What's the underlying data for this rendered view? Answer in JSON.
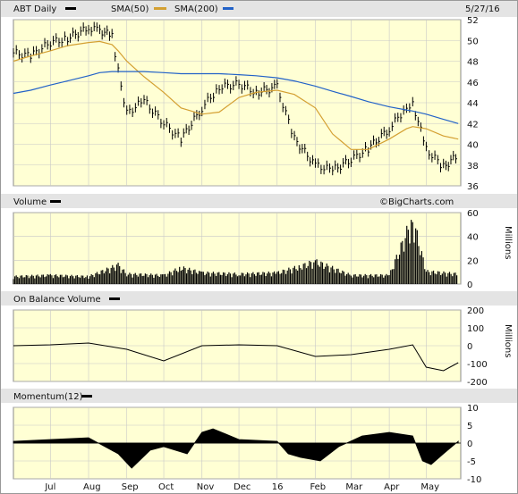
{
  "header": {
    "symbol_label": "ABT Daily",
    "sma50_label": "SMA(50)",
    "sma200_label": "SMA(200)",
    "date": "5/27/16"
  },
  "colors": {
    "price": "#000000",
    "sma50": "#d4a032",
    "sma200": "#2262c8",
    "panel_bg": "#ffffd4",
    "grid": "#c8c8c8",
    "header_bg": "#e4e4e4"
  },
  "x_axis": {
    "months": [
      "Jul",
      "Aug",
      "Sep",
      "Oct",
      "Nov",
      "Dec",
      "16",
      "Feb",
      "Mar",
      "Apr",
      "May"
    ]
  },
  "panels": {
    "volume": {
      "title": "Volume",
      "watermark": "©BigCharts.com",
      "unit_label": "Millions"
    },
    "obv": {
      "title": "On Balance Volume",
      "unit_label": "Millions"
    },
    "momentum": {
      "title": "Momentum(12)"
    }
  },
  "chart_data": [
    {
      "type": "line",
      "panel": "price",
      "title": "ABT Daily",
      "ylim": [
        36,
        52
      ],
      "yticks": [
        36,
        38,
        40,
        42,
        44,
        46,
        48,
        50,
        52
      ],
      "x": [
        "2015-06-01",
        "2015-06-15",
        "2015-07-01",
        "2015-07-15",
        "2015-08-01",
        "2015-08-10",
        "2015-08-20",
        "2015-08-25",
        "2015-09-01",
        "2015-09-15",
        "2015-10-01",
        "2015-10-15",
        "2015-11-01",
        "2015-11-15",
        "2015-12-01",
        "2015-12-15",
        "2016-01-01",
        "2016-01-15",
        "2016-02-01",
        "2016-02-15",
        "2016-03-01",
        "2016-03-15",
        "2016-04-01",
        "2016-04-15",
        "2016-04-20",
        "2016-05-01",
        "2016-05-15",
        "2016-05-27"
      ],
      "series": [
        {
          "name": "ABT Daily",
          "values": [
            48.8,
            48.5,
            49.8,
            50.2,
            51.2,
            51.0,
            50.4,
            47.0,
            43.0,
            44.2,
            42.0,
            40.5,
            43.5,
            45.5,
            45.8,
            45.0,
            45.5,
            40.5,
            38.0,
            37.5,
            38.5,
            39.6,
            41.5,
            43.6,
            44.0,
            39.5,
            37.8,
            39.0
          ]
        },
        {
          "name": "SMA(50)",
          "values": [
            48.0,
            48.5,
            49.0,
            49.5,
            49.8,
            49.9,
            49.6,
            49.0,
            48.0,
            46.5,
            45.0,
            43.5,
            42.9,
            43.1,
            44.5,
            45.0,
            45.2,
            44.8,
            43.5,
            41.0,
            39.5,
            39.5,
            40.5,
            41.5,
            41.7,
            41.5,
            40.8,
            40.5
          ]
        },
        {
          "name": "SMA(200)",
          "values": [
            44.9,
            45.2,
            45.7,
            46.1,
            46.6,
            46.9,
            47.0,
            47.0,
            47.0,
            47.0,
            46.9,
            46.8,
            46.8,
            46.8,
            46.7,
            46.6,
            46.4,
            46.1,
            45.6,
            45.1,
            44.6,
            44.1,
            43.6,
            43.3,
            43.2,
            42.9,
            42.4,
            42.0
          ]
        }
      ]
    },
    {
      "type": "bar",
      "panel": "volume",
      "title": "Volume",
      "ylabel": "Millions",
      "ylim": [
        0,
        60
      ],
      "yticks": [
        0,
        20,
        40,
        60
      ],
      "x": [
        "2015-06-01",
        "2015-07-01",
        "2015-08-01",
        "2015-08-25",
        "2015-09-01",
        "2015-10-01",
        "2015-10-15",
        "2015-11-01",
        "2015-12-01",
        "2016-01-01",
        "2016-01-20",
        "2016-02-01",
        "2016-03-01",
        "2016-04-01",
        "2016-04-20",
        "2016-05-01",
        "2016-05-27"
      ],
      "values": [
        6,
        7,
        6,
        15,
        8,
        7,
        13,
        9,
        8,
        9,
        14,
        18,
        7,
        7,
        52,
        10,
        8
      ]
    },
    {
      "type": "line",
      "panel": "obv",
      "title": "On Balance Volume",
      "ylabel": "Millions",
      "ylim": [
        -200,
        200
      ],
      "yticks": [
        -200,
        -100,
        0,
        100,
        200
      ],
      "x": [
        "2015-06-01",
        "2015-07-01",
        "2015-08-01",
        "2015-09-01",
        "2015-10-01",
        "2015-11-01",
        "2015-12-01",
        "2016-01-01",
        "2016-02-01",
        "2016-03-01",
        "2016-04-01",
        "2016-04-20",
        "2016-05-01",
        "2016-05-15",
        "2016-05-27"
      ],
      "values": [
        0,
        5,
        15,
        -20,
        -85,
        0,
        5,
        0,
        -60,
        -50,
        -20,
        5,
        -120,
        -140,
        -95
      ]
    },
    {
      "type": "area",
      "panel": "momentum",
      "title": "Momentum(12)",
      "ylim": [
        -10,
        10
      ],
      "yticks": [
        -10,
        -5,
        0,
        5,
        10
      ],
      "x": [
        "2015-06-01",
        "2015-07-01",
        "2015-08-01",
        "2015-08-25",
        "2015-09-05",
        "2015-09-20",
        "2015-10-01",
        "2015-10-20",
        "2015-11-01",
        "2015-11-10",
        "2015-12-01",
        "2016-01-01",
        "2016-01-10",
        "2016-01-20",
        "2016-02-05",
        "2016-02-20",
        "2016-03-10",
        "2016-04-01",
        "2016-04-20",
        "2016-04-28",
        "2016-05-05",
        "2016-05-15",
        "2016-05-27"
      ],
      "values": [
        0.5,
        1,
        1.5,
        -3,
        -7,
        -2,
        -1,
        -3,
        3,
        4,
        1,
        0.5,
        -3,
        -4,
        -5,
        -1,
        2,
        3,
        2,
        -5,
        -6,
        -3,
        0.5
      ]
    }
  ]
}
